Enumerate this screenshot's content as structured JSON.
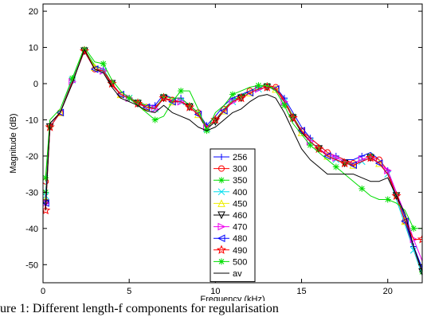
{
  "caption": "ure 1: Different length-f components for regularisation",
  "chart_data": {
    "type": "line",
    "xlabel": "Frequency (kHz)",
    "ylabel": "Magnitude (dB)",
    "xlim": [
      0,
      22
    ],
    "ylim": [
      -55,
      22
    ],
    "xticks": [
      0,
      5,
      10,
      15,
      20
    ],
    "yticks": [
      -50,
      -40,
      -30,
      -20,
      -10,
      0,
      10,
      20
    ],
    "grid": false,
    "legend": {
      "position": "lower-center"
    },
    "x": [
      0.15,
      0.4,
      1,
      1.7,
      2.4,
      3,
      3.5,
      4,
      4.5,
      5,
      5.5,
      6,
      6.5,
      7,
      7.5,
      8,
      8.5,
      9,
      9.5,
      10,
      10.5,
      11,
      11.5,
      12,
      12.5,
      13,
      13.5,
      14,
      14.5,
      15,
      15.5,
      16,
      16.5,
      17,
      17.5,
      18,
      18.5,
      19,
      19.5,
      20,
      20.5,
      21,
      21.5,
      22
    ],
    "series": [
      {
        "name": "256",
        "color": "#0000ff",
        "marker": "plus",
        "values": [
          -33,
          -11,
          -8,
          1,
          9.5,
          5,
          4,
          0,
          -3,
          -4,
          -5,
          -6,
          -6,
          -3,
          -4,
          -4,
          -6,
          -8,
          -11.5,
          -9,
          -6,
          -4,
          -3,
          -2,
          -1,
          -0.5,
          -1,
          -4,
          -8,
          -12,
          -15,
          -17,
          -19,
          -20,
          -21,
          -21,
          -20,
          -19,
          -21,
          -24,
          -30,
          -37,
          -45,
          -51
        ]
      },
      {
        "name": "300",
        "color": "#ff0000",
        "marker": "circle",
        "values": [
          -27,
          -11,
          -8,
          1,
          9.5,
          4,
          3.5,
          -0.5,
          -3,
          -4,
          -5,
          -6.5,
          -6.5,
          -4,
          -4.5,
          -5,
          -6,
          -8,
          -12,
          -10,
          -7,
          -5,
          -3.5,
          -2,
          -1,
          -0.5,
          -1,
          -4.5,
          -9,
          -13,
          -15,
          -17,
          -19,
          -20,
          -21,
          -22,
          -21,
          -20,
          -21,
          -24,
          -31,
          -38,
          -46,
          -52
        ]
      },
      {
        "name": "350",
        "color": "#00dd00",
        "marker": "asterisk",
        "values": [
          -30,
          -12,
          -8,
          1,
          9.5,
          5,
          4,
          0,
          -3,
          -4,
          -5,
          -6,
          -7,
          -3.5,
          -4,
          -4,
          -6,
          -8,
          -12,
          -10,
          -7,
          -4.5,
          -3.5,
          -2,
          -1,
          -0.5,
          -1.5,
          -5,
          -9,
          -13,
          -16,
          -18,
          -20,
          -21,
          -22,
          -22,
          -21,
          -20,
          -22,
          -25,
          -31,
          -38,
          -45,
          -52
        ]
      },
      {
        "name": "400",
        "color": "#00ddee",
        "marker": "x",
        "values": [
          -31,
          -12,
          -8,
          1,
          9.5,
          4.5,
          3.5,
          0,
          -3,
          -4,
          -5.5,
          -6.5,
          -7,
          -4,
          -5,
          -5,
          -6.5,
          -8.5,
          -12.5,
          -10.5,
          -7.5,
          -5,
          -4,
          -2.5,
          -1.5,
          -1,
          -1.5,
          -5,
          -9.5,
          -13.5,
          -16,
          -18,
          -20,
          -21,
          -22,
          -22.5,
          -21.5,
          -20.5,
          -22,
          -25,
          -32,
          -39,
          -46,
          -53
        ]
      },
      {
        "name": "450",
        "color": "#eeee00",
        "marker": "triangle-up",
        "values": [
          -32,
          -12,
          -8,
          0.5,
          9.5,
          4.5,
          3.5,
          0,
          -3,
          -4,
          -5.5,
          -6.5,
          -7,
          -4,
          -5,
          -5,
          -6.5,
          -8.5,
          -12.5,
          -10.5,
          -7.5,
          -5,
          -4,
          -2.5,
          -1.5,
          -1,
          -1.5,
          -5,
          -9.5,
          -13.5,
          -16,
          -18,
          -20,
          -21,
          -22,
          -22.5,
          -21.5,
          -20.5,
          -22,
          -25,
          -31,
          -38,
          -45,
          -52
        ]
      },
      {
        "name": "460",
        "color": "#000000",
        "marker": "triangle-down",
        "values": [
          -33,
          -12,
          -8,
          0.5,
          9,
          4,
          3.5,
          0,
          -3,
          -4,
          -5.5,
          -6.5,
          -7,
          -4,
          -5,
          -5,
          -6.5,
          -8.5,
          -12.5,
          -10.5,
          -7.5,
          -5,
          -4,
          -2.5,
          -1.5,
          -1,
          -1.5,
          -5,
          -9.5,
          -13.5,
          -16,
          -18,
          -20,
          -21,
          -22,
          -22.5,
          -21.5,
          -20.5,
          -22,
          -25,
          -31,
          -38,
          -45,
          -52
        ]
      },
      {
        "name": "470",
        "color": "#ee00ee",
        "marker": "triangle-right",
        "values": [
          -33,
          -12,
          -8,
          0.5,
          9,
          4,
          3.5,
          0,
          -3,
          -4,
          -5.5,
          -6.5,
          -7,
          -4,
          -5,
          -5,
          -6.5,
          -8.5,
          -12,
          -10,
          -7.5,
          -5,
          -4,
          -2.5,
          -1.5,
          -1,
          -1.5,
          -5,
          -9.5,
          -13,
          -16,
          -18,
          -19.5,
          -20.5,
          -21.5,
          -22,
          -21,
          -20,
          -22,
          -24,
          -30,
          -36,
          -43,
          -49
        ]
      },
      {
        "name": "480",
        "color": "#0000ff",
        "marker": "triangle-left",
        "values": [
          -33,
          -12,
          -8,
          0.5,
          9,
          4,
          3.5,
          0,
          -3,
          -4,
          -5.5,
          -6.5,
          -7,
          -4,
          -5,
          -5,
          -6.5,
          -8.5,
          -12,
          -10,
          -7.5,
          -5,
          -4,
          -2.5,
          -1.5,
          -1,
          -1.5,
          -5,
          -9.5,
          -13,
          -16,
          -18,
          -20,
          -21,
          -22,
          -22.5,
          -21.5,
          -20.5,
          -22,
          -25,
          -31,
          -38,
          -45,
          -51
        ]
      },
      {
        "name": "490",
        "color": "#ff0000",
        "marker": "star",
        "values": [
          -35,
          -12,
          -8,
          0.5,
          9,
          4,
          3.5,
          0,
          -3,
          -4,
          -5.5,
          -6.5,
          -7,
          -4,
          -5,
          -5,
          -6.5,
          -8.5,
          -12,
          -10,
          -7.5,
          -5,
          -4,
          -2.5,
          -1.5,
          -1,
          -1.5,
          -5,
          -9.5,
          -13,
          -16,
          -18,
          -20,
          -21,
          -22,
          -22.5,
          -21.5,
          -20.5,
          -22,
          -25,
          -31,
          -38,
          -43,
          -43
        ]
      },
      {
        "name": "500",
        "color": "#00dd00",
        "marker": "asterisk",
        "values": [
          -26,
          -10,
          -7,
          1.5,
          10,
          6,
          5.5,
          1,
          -2,
          -4,
          -6,
          -8,
          -10,
          -9,
          -5,
          -2,
          -2,
          -7,
          -13,
          -8,
          -6,
          -3,
          -2,
          -1,
          -0.5,
          -0.5,
          -2,
          -6,
          -11,
          -14,
          -17,
          -19,
          -21,
          -23,
          -25,
          -27,
          -29,
          -31,
          -32,
          -32,
          -33,
          -35,
          -40,
          -40
        ]
      },
      {
        "name": "av",
        "color": "#000000",
        "marker": "none",
        "values": [
          -35,
          -11,
          -8,
          0,
          9.5,
          4,
          3,
          -1,
          -4,
          -5,
          -6,
          -7.5,
          -8,
          -6,
          -8,
          -9,
          -10,
          -12,
          -13,
          -12,
          -10,
          -8,
          -7,
          -5,
          -3.5,
          -3,
          -4,
          -8,
          -13,
          -18,
          -21,
          -23,
          -25,
          -25,
          -25,
          -25,
          -26,
          -27,
          -27,
          -26,
          -31,
          -36,
          -45,
          -52
        ]
      }
    ]
  }
}
